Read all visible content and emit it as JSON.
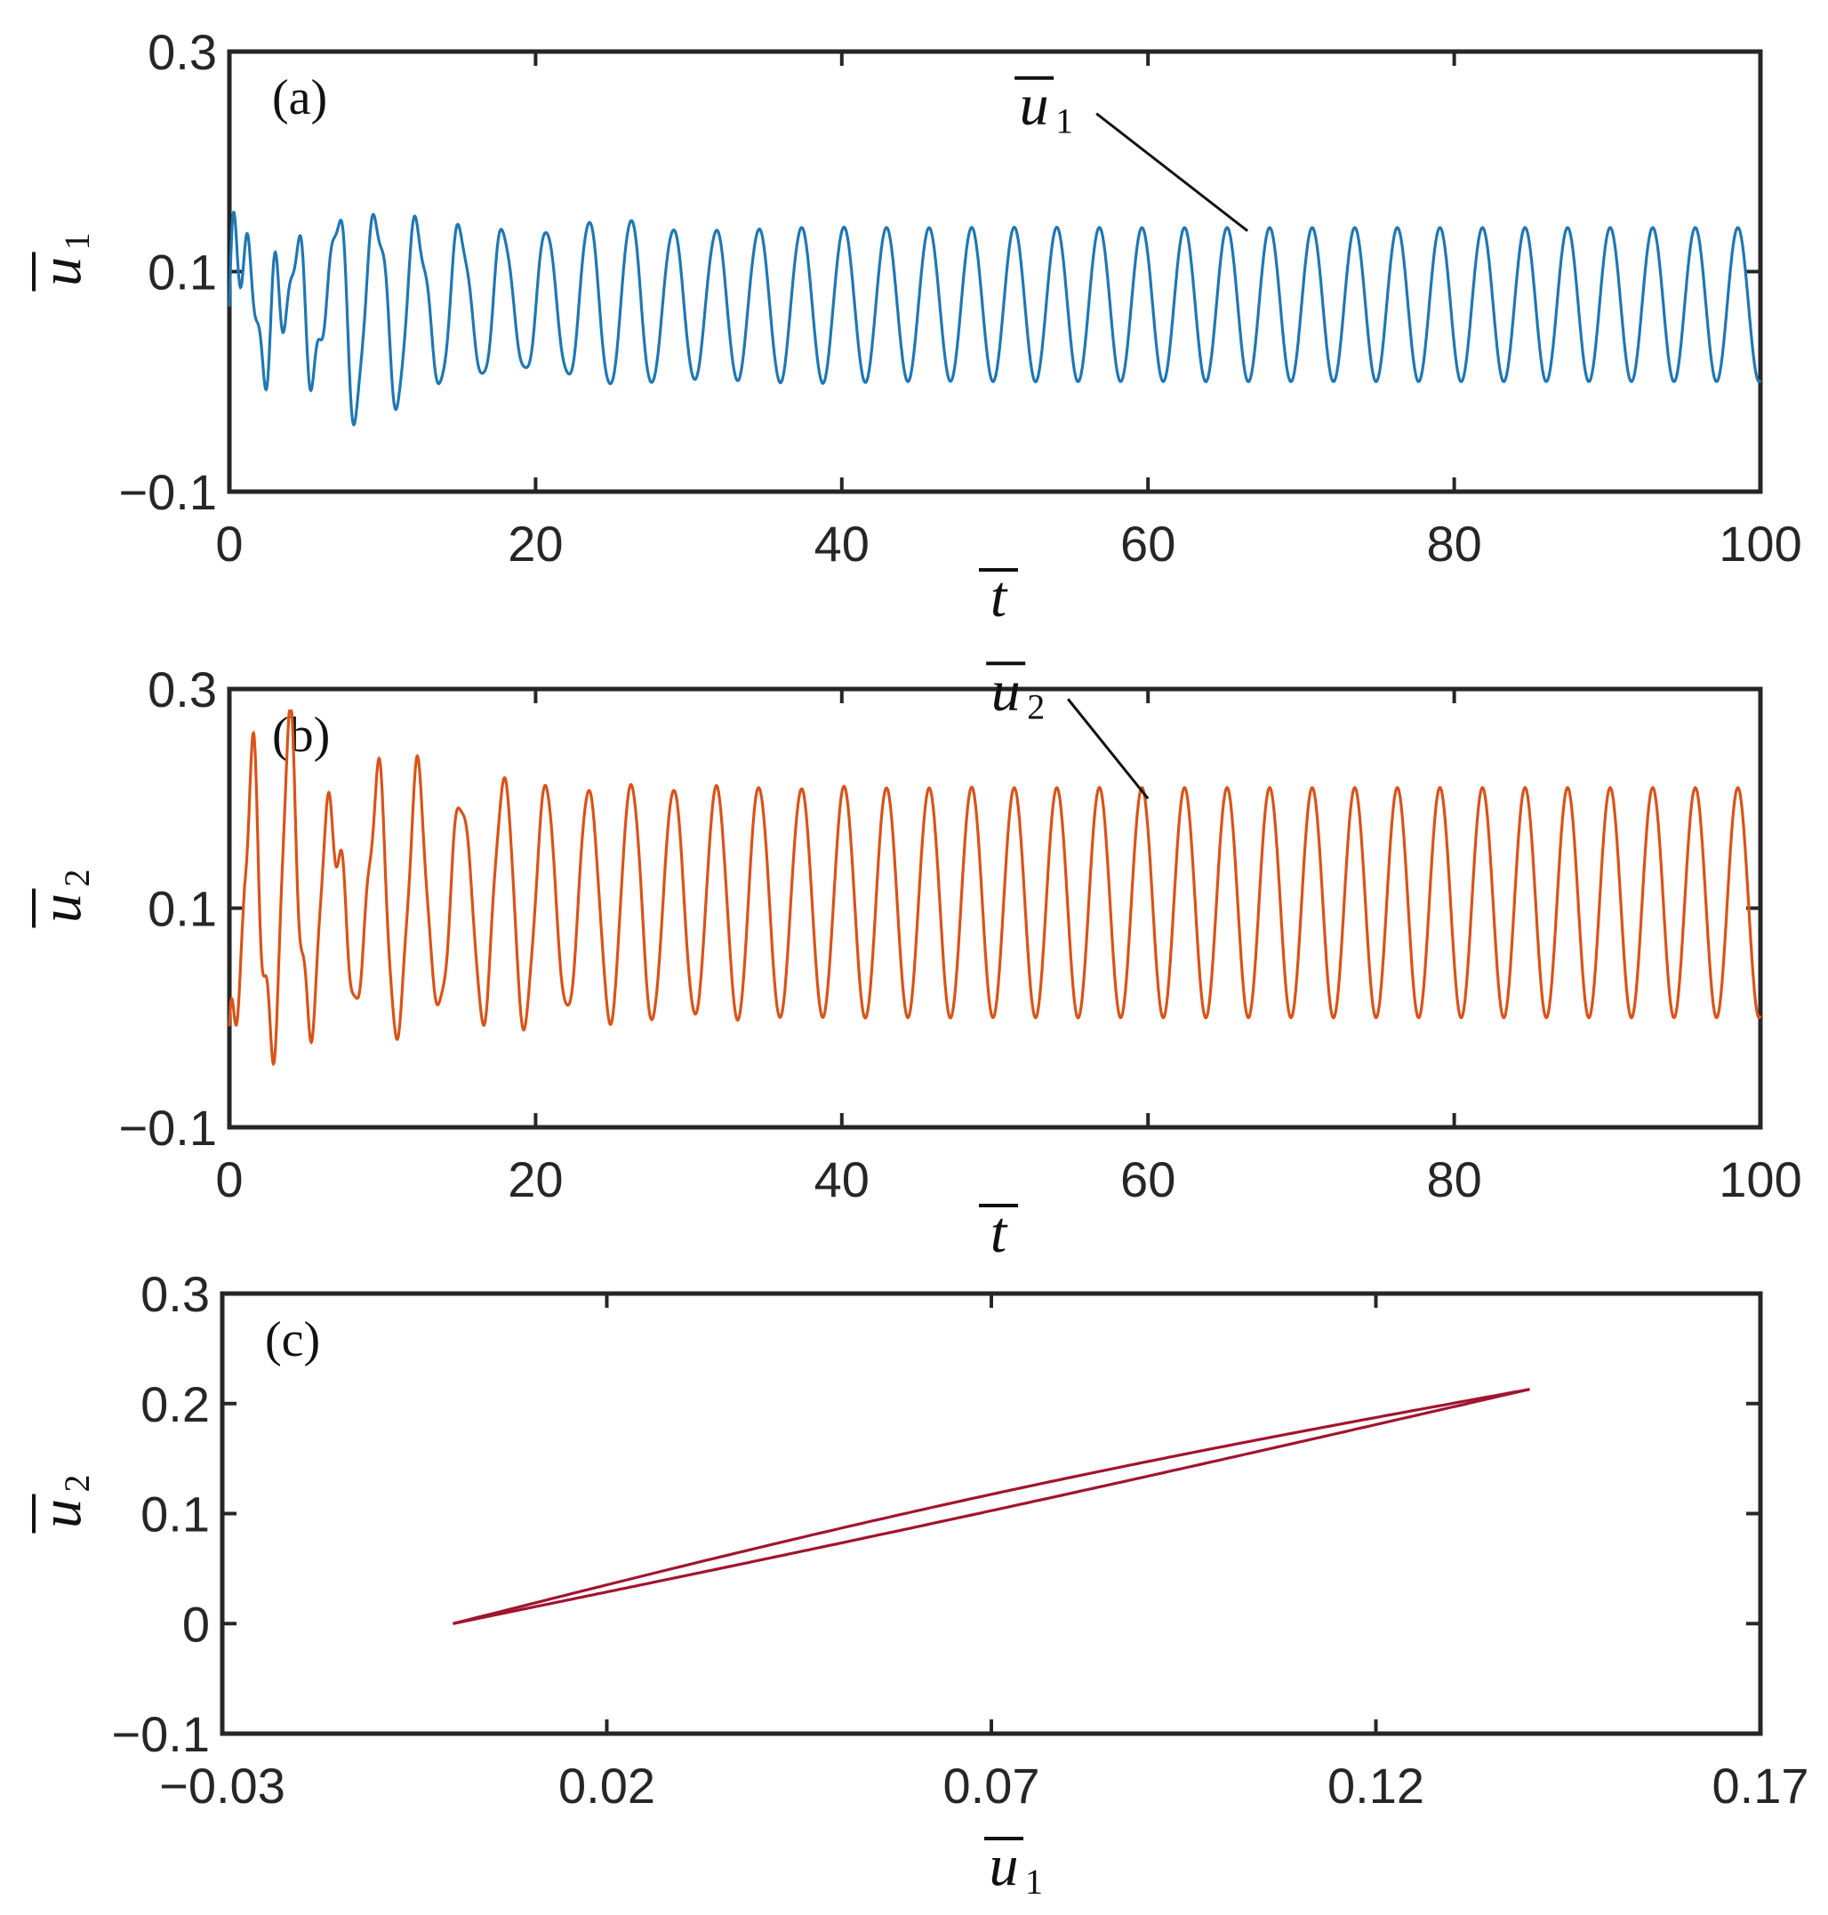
{
  "chart_data": [
    {
      "type": "line",
      "panel_label": "(a)",
      "color": "#1F77B4",
      "xlabel": "t",
      "ylabel": "u",
      "ylabel_sub": "1",
      "xlim": [
        0,
        100
      ],
      "ylim": [
        -0.1,
        0.3
      ],
      "xticks": [
        "0",
        "20",
        "40",
        "60",
        "80",
        "100"
      ],
      "yticks": [
        "−0.1",
        "0.1",
        "0.3"
      ],
      "annotation": {
        "text": "u",
        "sub": "1",
        "target_x": 66.5,
        "target_y": 0.137
      },
      "series": [
        {
          "name": "ū₁",
          "period": 2.78,
          "steady_min": 0.0,
          "steady_max": 0.14,
          "transient_end": 30
        }
      ]
    },
    {
      "type": "line",
      "panel_label": "(b)",
      "color": "#D95319",
      "xlabel": "t",
      "ylabel": "u",
      "ylabel_sub": "2",
      "xlim": [
        0,
        100
      ],
      "ylim": [
        -0.1,
        0.3
      ],
      "xticks": [
        "0",
        "20",
        "40",
        "60",
        "80",
        "100"
      ],
      "yticks": [
        "−0.1",
        "0.1",
        "0.3"
      ],
      "annotation": {
        "text": "u",
        "sub": "2",
        "target_x": 60.0,
        "target_y": 0.2
      },
      "series": [
        {
          "name": "ū₂",
          "period": 2.78,
          "steady_min": 0.0,
          "steady_max": 0.21,
          "transient_end": 30
        }
      ]
    },
    {
      "type": "line",
      "panel_label": "(c)",
      "color": "#A2142F",
      "xlabel": "u",
      "xlabel_sub": "1",
      "ylabel": "u",
      "ylabel_sub": "2",
      "xlim": [
        -0.03,
        0.17
      ],
      "ylim": [
        -0.1,
        0.3
      ],
      "xticks": [
        "−0.03",
        "0.02",
        "0.07",
        "0.12",
        "0.17"
      ],
      "yticks": [
        "−0.1",
        "0",
        "0.1",
        "0.2",
        "0.3"
      ],
      "series": [
        {
          "name": "phase orbit",
          "x_range": [
            0.0,
            0.14
          ],
          "y_range": [
            0.0,
            0.213
          ]
        }
      ]
    }
  ]
}
